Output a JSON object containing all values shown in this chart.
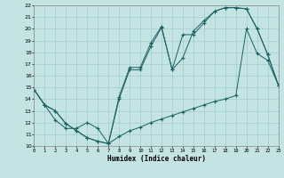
{
  "xlabel": "Humidex (Indice chaleur)",
  "xlim": [
    0,
    23
  ],
  "ylim": [
    10,
    22
  ],
  "xticks": [
    0,
    1,
    2,
    3,
    4,
    5,
    6,
    7,
    8,
    9,
    10,
    11,
    12,
    13,
    14,
    15,
    16,
    17,
    18,
    19,
    20,
    21,
    22,
    23
  ],
  "yticks": [
    10,
    11,
    12,
    13,
    14,
    15,
    16,
    17,
    18,
    19,
    20,
    21,
    22
  ],
  "bg_color": "#c4e4e4",
  "grid_color": "#a0cece",
  "line_color": "#1a6060",
  "line1_x": [
    0,
    1,
    2,
    3,
    4,
    5,
    6,
    7,
    8,
    9,
    10,
    11,
    12,
    13,
    14,
    15,
    16,
    17,
    18,
    19,
    20,
    21,
    22,
    23
  ],
  "line1_y": [
    14.8,
    13.5,
    13.0,
    11.9,
    11.3,
    10.7,
    10.4,
    10.2,
    14.0,
    16.5,
    16.5,
    18.5,
    20.1,
    16.5,
    19.5,
    19.5,
    20.5,
    21.5,
    21.8,
    21.8,
    21.7,
    20.0,
    17.8,
    15.2
  ],
  "line2_x": [
    0,
    1,
    2,
    3,
    4,
    5,
    6,
    7,
    8,
    9,
    10,
    11,
    12,
    13,
    14,
    15,
    16,
    17,
    18,
    19,
    20,
    21,
    22,
    23
  ],
  "line2_y": [
    14.8,
    13.5,
    13.0,
    11.9,
    11.3,
    10.7,
    10.4,
    10.2,
    14.2,
    16.7,
    16.7,
    18.8,
    20.2,
    16.5,
    17.5,
    19.8,
    20.7,
    21.5,
    21.8,
    21.8,
    21.7,
    20.0,
    17.8,
    15.2
  ],
  "line3_x": [
    0,
    1,
    2,
    3,
    4,
    5,
    6,
    7,
    8,
    9,
    10,
    11,
    12,
    13,
    14,
    15,
    16,
    17,
    18,
    19,
    20,
    21,
    22,
    23
  ],
  "line3_y": [
    14.8,
    13.5,
    12.2,
    11.5,
    11.5,
    12.0,
    11.5,
    10.2,
    10.8,
    11.3,
    11.6,
    12.0,
    12.3,
    12.6,
    12.9,
    13.2,
    13.5,
    13.8,
    14.0,
    14.3,
    20.0,
    17.9,
    17.3,
    15.2
  ]
}
